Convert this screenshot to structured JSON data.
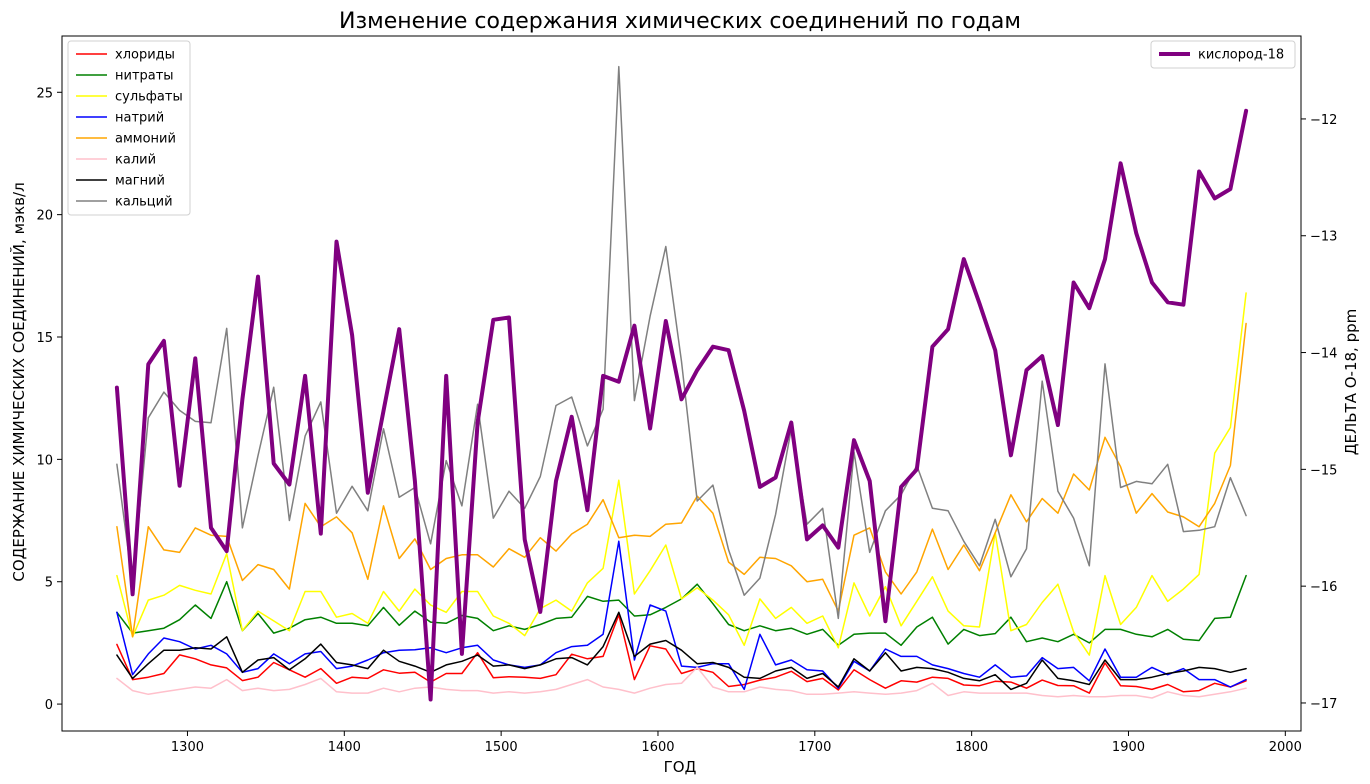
{
  "chart_data": {
    "type": "line",
    "title": "Изменение содержания химических соединений по годам",
    "xlabel": "ГОД",
    "ylabel": "СОДЕРЖАНИЕ ХИМИЧЕСКИХ СОЕДИНЕНИЙ, мэкв/л",
    "y2label": "ДЕЛЬТА О-18, ppm",
    "xlim": [
      1220,
      2010
    ],
    "ylim": [
      -1.1,
      27.3
    ],
    "y2lim": [
      -17.24,
      -11.29
    ],
    "x_ticks": [
      1300,
      1400,
      1500,
      1600,
      1700,
      1800,
      1900,
      2000
    ],
    "y_ticks": [
      0,
      5,
      10,
      15,
      20,
      25
    ],
    "y2_ticks": [
      -17,
      -16,
      -15,
      -14,
      -13,
      -12
    ],
    "legend_left_position": "upper-left",
    "legend_right_position": "upper-right",
    "grid": false,
    "x": [
      1255,
      1265,
      1275,
      1285,
      1295,
      1305,
      1315,
      1325,
      1335,
      1345,
      1355,
      1365,
      1375,
      1385,
      1395,
      1405,
      1415,
      1425,
      1435,
      1445,
      1455,
      1465,
      1475,
      1485,
      1495,
      1505,
      1515,
      1525,
      1535,
      1545,
      1555,
      1565,
      1575,
      1585,
      1595,
      1605,
      1615,
      1625,
      1635,
      1645,
      1655,
      1665,
      1675,
      1685,
      1695,
      1705,
      1715,
      1725,
      1735,
      1745,
      1755,
      1765,
      1775,
      1785,
      1795,
      1805,
      1815,
      1825,
      1835,
      1845,
      1855,
      1865,
      1875,
      1885,
      1895,
      1905,
      1915,
      1925,
      1935,
      1945,
      1955,
      1965,
      1975
    ],
    "series": [
      {
        "name": "хлориды",
        "color": "#ff0000",
        "axis": "left",
        "width": 1.5,
        "values": [
          2.44,
          1.0,
          1.1,
          1.25,
          2.01,
          1.85,
          1.6,
          1.48,
          0.96,
          1.1,
          1.7,
          1.4,
          1.1,
          1.45,
          0.85,
          1.1,
          1.05,
          1.4,
          1.26,
          1.3,
          0.9,
          1.25,
          1.25,
          2.1,
          1.08,
          1.12,
          1.1,
          1.05,
          1.2,
          2.04,
          1.85,
          1.95,
          3.65,
          1.0,
          2.38,
          2.25,
          1.25,
          1.45,
          1.3,
          0.72,
          0.8,
          0.98,
          1.1,
          1.34,
          0.92,
          1.05,
          0.58,
          1.4,
          1.0,
          0.65,
          0.95,
          0.9,
          1.1,
          1.05,
          0.78,
          0.75,
          0.93,
          0.9,
          0.65,
          0.98,
          0.76,
          0.75,
          0.45,
          1.68,
          0.75,
          0.72,
          0.6,
          0.8,
          0.5,
          0.55,
          0.85,
          0.7,
          0.95
        ]
      },
      {
        "name": "нитраты",
        "color": "#008000",
        "axis": "left",
        "width": 1.5,
        "values": [
          3.75,
          2.9,
          3.0,
          3.1,
          3.45,
          4.05,
          3.5,
          5.0,
          3.0,
          3.7,
          2.9,
          3.1,
          3.45,
          3.55,
          3.3,
          3.3,
          3.2,
          3.95,
          3.22,
          3.8,
          3.35,
          3.3,
          3.62,
          3.5,
          3.0,
          3.2,
          3.05,
          3.25,
          3.5,
          3.55,
          4.4,
          4.2,
          4.25,
          3.6,
          3.65,
          3.95,
          4.3,
          4.9,
          4.1,
          3.25,
          3.0,
          3.2,
          3.0,
          3.1,
          2.85,
          3.05,
          2.4,
          2.85,
          2.9,
          2.9,
          2.4,
          3.15,
          3.55,
          2.45,
          3.05,
          2.8,
          2.88,
          3.55,
          2.55,
          2.7,
          2.55,
          2.85,
          2.5,
          3.05,
          3.05,
          2.85,
          2.75,
          3.05,
          2.65,
          2.6,
          3.5,
          3.55,
          5.25
        ]
      },
      {
        "name": "сульфаты",
        "color": "#ffff00",
        "axis": "left",
        "width": 1.5,
        "values": [
          5.25,
          2.75,
          4.25,
          4.45,
          4.85,
          4.65,
          4.5,
          6.15,
          3.0,
          3.8,
          3.4,
          3.0,
          4.6,
          4.6,
          3.55,
          3.7,
          3.3,
          4.6,
          3.8,
          4.7,
          4.05,
          3.75,
          4.6,
          4.6,
          3.6,
          3.3,
          2.8,
          3.9,
          4.25,
          3.8,
          4.95,
          5.55,
          9.15,
          4.5,
          5.45,
          6.5,
          4.3,
          4.75,
          4.25,
          3.65,
          2.4,
          4.3,
          3.5,
          3.95,
          3.3,
          3.6,
          2.3,
          4.95,
          3.6,
          4.8,
          3.2,
          4.2,
          5.2,
          3.8,
          3.2,
          3.15,
          7.0,
          3.0,
          3.25,
          4.15,
          4.9,
          2.95,
          2.0,
          5.25,
          3.25,
          3.95,
          5.25,
          4.2,
          4.7,
          5.3,
          10.25,
          11.3,
          16.8
        ]
      },
      {
        "name": "натрий",
        "color": "#0000ff",
        "axis": "left",
        "width": 1.5,
        "values": [
          3.75,
          1.2,
          2.05,
          2.7,
          2.55,
          2.25,
          2.4,
          2.05,
          1.3,
          1.45,
          2.05,
          1.65,
          2.05,
          2.15,
          1.45,
          1.55,
          1.8,
          2.1,
          2.2,
          2.22,
          2.3,
          2.1,
          2.3,
          2.4,
          1.8,
          1.6,
          1.5,
          1.6,
          2.1,
          2.35,
          2.4,
          2.85,
          6.65,
          1.8,
          4.05,
          3.8,
          1.55,
          1.5,
          1.65,
          1.65,
          0.6,
          2.85,
          1.6,
          1.8,
          1.4,
          1.35,
          0.65,
          1.75,
          1.35,
          2.25,
          1.95,
          1.95,
          1.6,
          1.45,
          1.25,
          1.1,
          1.6,
          1.1,
          1.15,
          1.9,
          1.45,
          1.5,
          0.95,
          2.25,
          1.1,
          1.1,
          1.5,
          1.2,
          1.45,
          1.0,
          1.0,
          0.7,
          1.0
        ]
      },
      {
        "name": "аммоний",
        "color": "#ffa500",
        "axis": "left",
        "width": 1.5,
        "values": [
          7.25,
          2.75,
          7.25,
          6.3,
          6.2,
          7.2,
          6.9,
          6.85,
          5.05,
          5.7,
          5.5,
          4.7,
          8.2,
          7.25,
          7.65,
          7.0,
          5.1,
          8.1,
          5.95,
          6.75,
          5.5,
          5.95,
          6.1,
          6.1,
          5.6,
          6.35,
          6.0,
          6.8,
          6.25,
          6.95,
          7.35,
          8.35,
          6.8,
          6.9,
          6.85,
          7.35,
          7.4,
          8.5,
          7.8,
          5.8,
          5.3,
          6.0,
          5.95,
          5.65,
          5.0,
          5.1,
          3.8,
          6.9,
          7.2,
          5.4,
          4.5,
          5.4,
          7.15,
          5.5,
          6.5,
          5.45,
          7.0,
          8.55,
          7.45,
          8.4,
          7.8,
          9.4,
          8.75,
          10.9,
          9.7,
          7.8,
          8.6,
          7.85,
          7.65,
          7.25,
          8.2,
          9.75,
          15.55
        ]
      },
      {
        "name": "калий",
        "color": "#ffc0cb",
        "axis": "left",
        "width": 1.5,
        "values": [
          1.05,
          0.55,
          0.4,
          0.5,
          0.6,
          0.7,
          0.65,
          1.0,
          0.55,
          0.65,
          0.55,
          0.6,
          0.8,
          1.05,
          0.5,
          0.45,
          0.45,
          0.65,
          0.5,
          0.65,
          0.7,
          0.6,
          0.55,
          0.55,
          0.45,
          0.5,
          0.45,
          0.5,
          0.6,
          0.8,
          1.0,
          0.7,
          0.6,
          0.45,
          0.65,
          0.8,
          0.85,
          1.5,
          0.7,
          0.5,
          0.5,
          0.7,
          0.6,
          0.55,
          0.4,
          0.4,
          0.45,
          0.5,
          0.45,
          0.4,
          0.45,
          0.55,
          0.85,
          0.35,
          0.5,
          0.45,
          0.45,
          0.45,
          0.45,
          0.35,
          0.3,
          0.35,
          0.3,
          0.3,
          0.35,
          0.35,
          0.25,
          0.5,
          0.35,
          0.3,
          0.4,
          0.5,
          0.65
        ]
      },
      {
        "name": "магний",
        "color": "#000000",
        "axis": "left",
        "width": 1.5,
        "values": [
          2.0,
          1.05,
          1.65,
          2.2,
          2.2,
          2.3,
          2.25,
          2.75,
          1.3,
          1.8,
          1.9,
          1.4,
          1.85,
          2.45,
          1.7,
          1.6,
          1.45,
          2.2,
          1.75,
          1.55,
          1.3,
          1.6,
          1.75,
          2.0,
          1.55,
          1.6,
          1.45,
          1.6,
          1.85,
          1.9,
          1.6,
          2.35,
          3.75,
          1.95,
          2.45,
          2.6,
          2.2,
          1.65,
          1.7,
          1.5,
          1.1,
          1.05,
          1.35,
          1.5,
          1.05,
          1.25,
          0.7,
          1.85,
          1.35,
          2.1,
          1.35,
          1.5,
          1.45,
          1.3,
          1.05,
          0.95,
          1.2,
          0.6,
          0.85,
          1.8,
          1.05,
          0.95,
          0.8,
          1.8,
          1.0,
          1.0,
          1.1,
          1.25,
          1.35,
          1.5,
          1.45,
          1.3,
          1.45
        ]
      },
      {
        "name": "кальций",
        "color": "#808080",
        "axis": "left",
        "width": 1.5,
        "values": [
          9.8,
          4.9,
          11.7,
          12.75,
          12.0,
          11.55,
          11.5,
          15.35,
          7.2,
          10.15,
          12.95,
          7.5,
          10.95,
          12.35,
          7.8,
          8.9,
          7.9,
          11.25,
          8.45,
          8.85,
          6.55,
          9.95,
          8.1,
          12.25,
          7.6,
          8.7,
          8.0,
          9.3,
          12.2,
          12.55,
          10.55,
          12.05,
          26.05,
          12.4,
          15.85,
          18.7,
          14.0,
          8.3,
          8.95,
          6.3,
          4.45,
          5.15,
          7.75,
          11.25,
          7.35,
          8.0,
          3.5,
          10.3,
          6.2,
          7.9,
          8.55,
          9.75,
          8.0,
          7.9,
          6.65,
          5.65,
          7.55,
          5.2,
          6.35,
          13.2,
          8.7,
          7.6,
          5.65,
          13.9,
          8.85,
          9.1,
          9.0,
          9.8,
          7.05,
          7.1,
          7.25,
          9.25,
          7.7
        ]
      },
      {
        "name": "кислород-18",
        "color": "#800080",
        "axis": "right",
        "width": 4,
        "values": [
          -14.3,
          -16.07,
          -14.1,
          -13.9,
          -15.14,
          -14.05,
          -15.5,
          -15.7,
          -14.4,
          -13.35,
          -14.95,
          -15.13,
          -14.2,
          -15.55,
          -13.05,
          -13.85,
          -15.2,
          -14.5,
          -13.8,
          -15.1,
          -16.97,
          -14.2,
          -16.58,
          -14.6,
          -13.72,
          -13.7,
          -15.6,
          -16.22,
          -15.1,
          -14.55,
          -15.35,
          -14.2,
          -14.25,
          -13.77,
          -14.65,
          -13.73,
          -14.4,
          -14.15,
          -13.95,
          -13.98,
          -14.5,
          -15.15,
          -15.07,
          -14.6,
          -15.6,
          -15.48,
          -15.67,
          -14.75,
          -15.1,
          -16.3,
          -15.15,
          -15.0,
          -13.95,
          -13.8,
          -13.2,
          -13.58,
          -13.98,
          -14.88,
          -14.15,
          -14.03,
          -14.62,
          -13.4,
          -13.62,
          -13.2,
          -12.38,
          -12.98,
          -13.4,
          -13.57,
          -13.59,
          -12.45,
          -12.68,
          -12.6,
          -11.93
        ]
      }
    ]
  }
}
